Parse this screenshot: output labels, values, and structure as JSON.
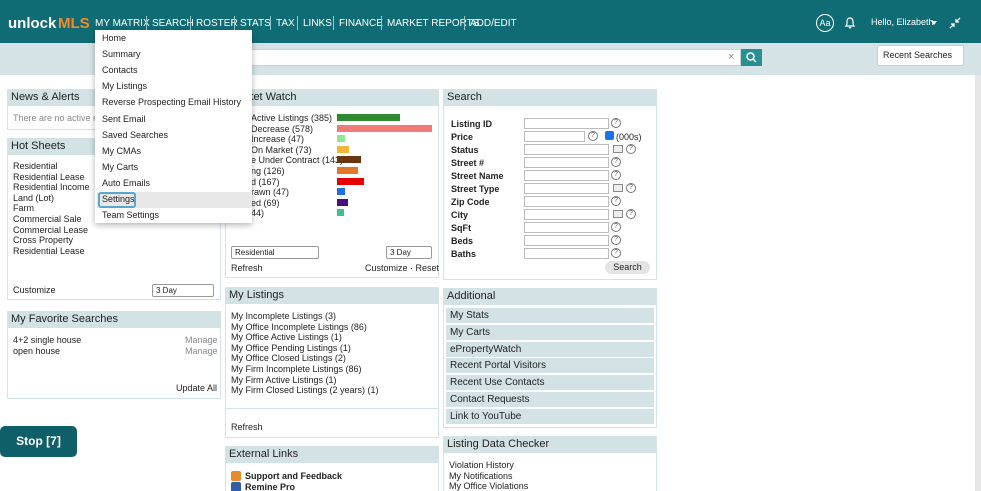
{
  "header": {
    "logo": "unlock",
    "logo_accent": "MLS",
    "nav": [
      "MY MATRIX",
      "SEARCH",
      "ROSTER",
      "STATS",
      "TAX",
      "LINKS",
      "FINANCE",
      "MARKET REPORTS",
      "ADD/EDIT"
    ],
    "font_size_button": "Aa",
    "greeting": "Hello, Elizabeth"
  },
  "search_bar": {
    "clear": "×",
    "recent_searches": "Recent Searches"
  },
  "menu": {
    "items": [
      "Home",
      "Summary",
      "Contacts",
      "My Listings",
      "Reverse Prospecting Email History",
      "Sent Email",
      "Saved Searches",
      "My CMAs",
      "My Carts",
      "Auto Emails",
      "Settings",
      "Team Settings"
    ],
    "selected": 10
  },
  "news": {
    "title": "News & Alerts",
    "message": "There are no active ne"
  },
  "hot_sheets": {
    "title": "Hot Sheets",
    "items": [
      "Residential",
      "Residential Lease",
      "Residential Income",
      "Land (Lot)",
      "Farm",
      "Commercial Sale",
      "Commercial Lease",
      "Cross Property",
      "Residential Lease"
    ],
    "customize": "Customize",
    "period": "3 Day"
  },
  "favorite_searches": {
    "title": "My Favorite Searches",
    "items": [
      {
        "name": "4+2 single house",
        "action": "Manage"
      },
      {
        "name": "open house",
        "action": "Manage"
      }
    ],
    "update_all": "Update All"
  },
  "stop_button": "Stop [7]",
  "market_watch": {
    "title": "Market Watch",
    "items": [
      {
        "label": "Active Listings (385)",
        "count": 385,
        "color": "#2f8a2f"
      },
      {
        "label": "Decrease (578)",
        "count": 578,
        "color": "#f07a78"
      },
      {
        "label": "Increase (47)",
        "count": 47,
        "color": "#8fe88f"
      },
      {
        "label": "On Market (73)",
        "count": 73,
        "color": "#f3b53a"
      },
      {
        "label": "e Under Contract (143)",
        "count": 143,
        "color": "#6b3510"
      },
      {
        "label": "ng (126)",
        "count": 126,
        "color": "#e0782a"
      },
      {
        "label": "d (167)",
        "count": 167,
        "color": "#e40000"
      },
      {
        "label": "rawn (47)",
        "count": 47,
        "color": "#1f6fe5"
      },
      {
        "label": "ed (69)",
        "count": 69,
        "color": "#4a0f78"
      },
      {
        "label": "44)",
        "count": 44,
        "color": "#3fbf98"
      }
    ],
    "property_type": "Residential",
    "period": "3 Day",
    "refresh": "Refresh",
    "customize_reset": "Customize · Reset"
  },
  "my_listings": {
    "title": "My Listings",
    "items": [
      "My Incomplete Listings (3)",
      "My Office Incomplete Listings (86)",
      "My Office Active Listings (1)",
      "My Office Pending Listings (1)",
      "My Office Closed Listings (2)",
      "My Firm Incomplete Listings (86)",
      "My Firm Active Listings (1)",
      "My Firm Closed Listings (2 years) (1)"
    ],
    "refresh": "Refresh"
  },
  "external_links": {
    "title": "External Links",
    "items": [
      "Support and Feedback",
      "Remine Pro"
    ]
  },
  "search": {
    "title": "Search",
    "fields": [
      "Listing ID",
      "Price",
      "Status",
      "Street #",
      "Street Name",
      "Street Type",
      "Zip Code",
      "City",
      "SqFt",
      "Beds",
      "Baths"
    ],
    "price_unit": "(000s)",
    "help": "?",
    "button": "Search"
  },
  "additional": {
    "title": "Additional",
    "items": [
      "My Stats",
      "My Carts",
      "ePropertyWatch",
      "Recent Portal Visitors",
      "Recent Use Contacts",
      "Contact Requests",
      "Link to YouTube"
    ]
  },
  "listing_data_checker": {
    "title": "Listing Data Checker",
    "items": [
      "Violation History",
      "My Notifications",
      "My Office Violations"
    ]
  }
}
